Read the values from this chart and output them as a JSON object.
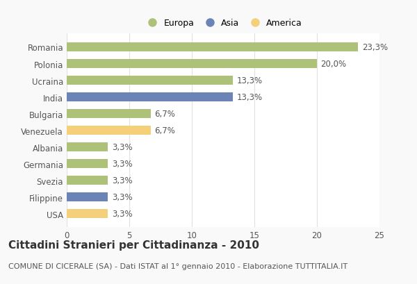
{
  "countries": [
    "Romania",
    "Polonia",
    "Ucraina",
    "India",
    "Bulgaria",
    "Venezuela",
    "Albania",
    "Germania",
    "Svezia",
    "Filippine",
    "USA"
  ],
  "values": [
    23.3,
    20.0,
    13.3,
    13.3,
    6.7,
    6.7,
    3.3,
    3.3,
    3.3,
    3.3,
    3.3
  ],
  "labels": [
    "23,3%",
    "20,0%",
    "13,3%",
    "13,3%",
    "6,7%",
    "6,7%",
    "3,3%",
    "3,3%",
    "3,3%",
    "3,3%",
    "3,3%"
  ],
  "colors": [
    "#adc178",
    "#adc178",
    "#adc178",
    "#6b83b5",
    "#adc178",
    "#f5d07a",
    "#adc178",
    "#adc178",
    "#adc178",
    "#6b83b5",
    "#f5d07a"
  ],
  "legend_labels": [
    "Europa",
    "Asia",
    "America"
  ],
  "legend_colors": [
    "#adc178",
    "#6b83b5",
    "#f5d07a"
  ],
  "title": "Cittadini Stranieri per Cittadinanza - 2010",
  "subtitle": "COMUNE DI CICERALE (SA) - Dati ISTAT al 1° gennaio 2010 - Elaborazione TUTTITALIA.IT",
  "xlim": [
    0,
    25
  ],
  "xticks": [
    0,
    5,
    10,
    15,
    20,
    25
  ],
  "plot_bg_color": "#ffffff",
  "fig_bg_color": "#f9f9f9",
  "grid_color": "#e0e0e0",
  "text_color": "#555555",
  "title_fontsize": 11,
  "subtitle_fontsize": 8,
  "label_fontsize": 8.5,
  "tick_fontsize": 8.5,
  "legend_fontsize": 9
}
